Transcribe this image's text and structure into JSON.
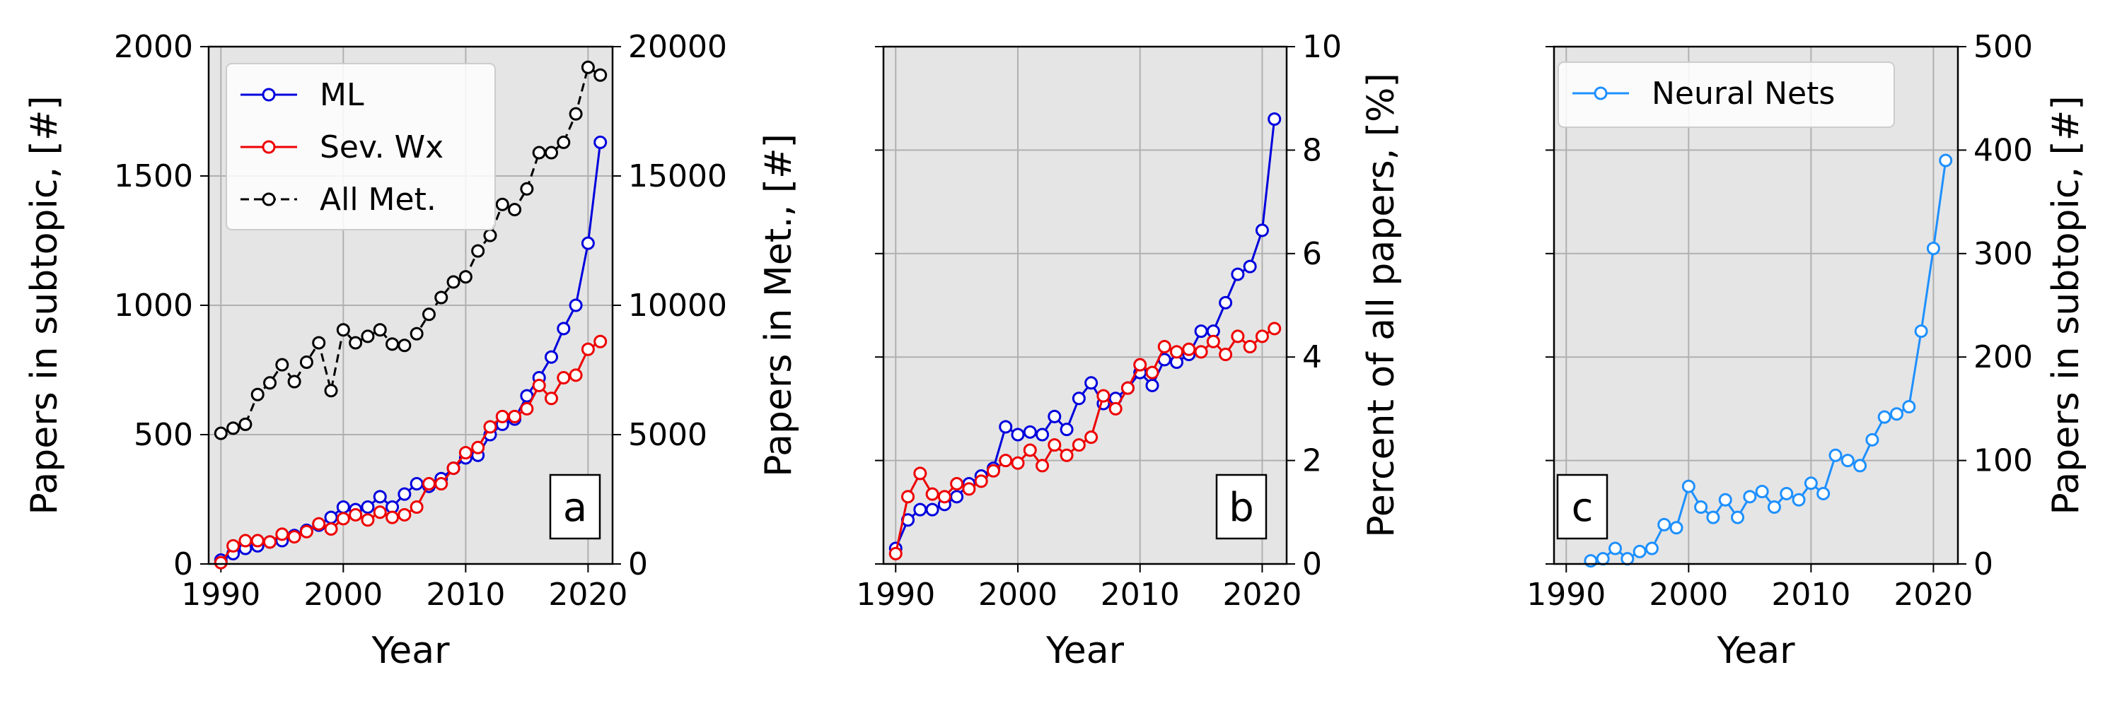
{
  "chart_data": [
    {
      "type": "line",
      "panel_label": "a",
      "xlabel": "Year",
      "ylabel": "Papers in subtopic, [#]",
      "ylabel_right": "Papers in Met., [#]",
      "xlim": [
        1989,
        2022
      ],
      "ylim": [
        0,
        2000
      ],
      "ylim_right": [
        0,
        20000
      ],
      "xticks": [
        "1990",
        "2000",
        "2010",
        "2020"
      ],
      "yticks": [
        "0",
        "500",
        "1000",
        "1500",
        "2000"
      ],
      "yticks_right": [
        "0",
        "5000",
        "10000",
        "15000",
        "20000"
      ],
      "grid": true,
      "legend_position": "top-left",
      "series": [
        {
          "name": "ML",
          "axis": "left",
          "color": "#0000dd",
          "linestyle": "solid",
          "x": [
            1990,
            1991,
            1992,
            1993,
            1994,
            1995,
            1996,
            1997,
            1998,
            1999,
            2000,
            2001,
            2002,
            2003,
            2004,
            2005,
            2006,
            2007,
            2008,
            2009,
            2010,
            2011,
            2012,
            2013,
            2014,
            2015,
            2016,
            2017,
            2018,
            2019,
            2020,
            2021
          ],
          "y": [
            15,
            40,
            60,
            70,
            85,
            90,
            110,
            130,
            150,
            180,
            220,
            210,
            220,
            260,
            220,
            270,
            310,
            300,
            330,
            370,
            410,
            420,
            500,
            540,
            560,
            650,
            720,
            800,
            910,
            1000,
            1240,
            1630
          ]
        },
        {
          "name": "Sev. Wx",
          "axis": "left",
          "color": "#ee0000",
          "linestyle": "solid",
          "x": [
            1990,
            1991,
            1992,
            1993,
            1994,
            1995,
            1996,
            1997,
            1998,
            1999,
            2000,
            2001,
            2002,
            2003,
            2004,
            2005,
            2006,
            2007,
            2008,
            2009,
            2010,
            2011,
            2012,
            2013,
            2014,
            2015,
            2016,
            2017,
            2018,
            2019,
            2020,
            2021
          ],
          "y": [
            5,
            70,
            90,
            90,
            85,
            115,
            105,
            125,
            155,
            135,
            175,
            190,
            170,
            200,
            180,
            190,
            220,
            310,
            310,
            370,
            430,
            450,
            530,
            570,
            570,
            600,
            690,
            640,
            720,
            730,
            830,
            860
          ]
        },
        {
          "name": "All Met.",
          "axis": "right",
          "color": "#000000",
          "linestyle": "dashed",
          "x": [
            1990,
            1991,
            1992,
            1993,
            1994,
            1995,
            1996,
            1997,
            1998,
            1999,
            2000,
            2001,
            2002,
            2003,
            2004,
            2005,
            2006,
            2007,
            2008,
            2009,
            2010,
            2011,
            2012,
            2013,
            2014,
            2015,
            2016,
            2017,
            2018,
            2019,
            2020,
            2021
          ],
          "y": [
            5050,
            5250,
            5400,
            6550,
            7000,
            7700,
            7050,
            7800,
            8550,
            6700,
            9050,
            8550,
            8800,
            9050,
            8500,
            8450,
            8900,
            9650,
            10300,
            10900,
            11100,
            12100,
            12700,
            13900,
            13700,
            14500,
            15900,
            15900,
            16300,
            17400,
            19200,
            18900
          ]
        }
      ]
    },
    {
      "type": "line",
      "panel_label": "b",
      "xlabel": "Year",
      "ylabel": "",
      "ylabel_right": "Percent of all papers, [%]",
      "xlim": [
        1989,
        2022
      ],
      "ylim_right": [
        0,
        10
      ],
      "xticks": [
        "1990",
        "2000",
        "2010",
        "2020"
      ],
      "yticks_right": [
        "0",
        "2",
        "4",
        "6",
        "8",
        "10"
      ],
      "grid": true,
      "series": [
        {
          "name": "ML",
          "axis": "right",
          "color": "#0000dd",
          "linestyle": "solid",
          "x": [
            1990,
            1991,
            1992,
            1993,
            1994,
            1995,
            1996,
            1997,
            1998,
            1999,
            2000,
            2001,
            2002,
            2003,
            2004,
            2005,
            2006,
            2007,
            2008,
            2009,
            2010,
            2011,
            2012,
            2013,
            2014,
            2015,
            2016,
            2017,
            2018,
            2019,
            2020,
            2021
          ],
          "y": [
            0.3,
            0.85,
            1.05,
            1.05,
            1.15,
            1.3,
            1.55,
            1.7,
            1.85,
            2.65,
            2.5,
            2.55,
            2.5,
            2.85,
            2.6,
            3.2,
            3.5,
            3.1,
            3.2,
            3.4,
            3.7,
            3.45,
            3.95,
            3.9,
            4.05,
            4.5,
            4.5,
            5.05,
            5.6,
            5.75,
            6.45,
            8.6
          ]
        },
        {
          "name": "Sev. Wx",
          "axis": "right",
          "color": "#ee0000",
          "linestyle": "solid",
          "x": [
            1990,
            1991,
            1992,
            1993,
            1994,
            1995,
            1996,
            1997,
            1998,
            1999,
            2000,
            2001,
            2002,
            2003,
            2004,
            2005,
            2006,
            2007,
            2008,
            2009,
            2010,
            2011,
            2012,
            2013,
            2014,
            2015,
            2016,
            2017,
            2018,
            2019,
            2020,
            2021
          ],
          "y": [
            0.2,
            1.3,
            1.75,
            1.35,
            1.3,
            1.55,
            1.45,
            1.6,
            1.8,
            2.0,
            1.95,
            2.2,
            1.9,
            2.3,
            2.1,
            2.3,
            2.45,
            3.25,
            3.0,
            3.4,
            3.85,
            3.7,
            4.2,
            4.1,
            4.15,
            4.1,
            4.3,
            4.05,
            4.4,
            4.2,
            4.4,
            4.55
          ]
        }
      ]
    },
    {
      "type": "line",
      "panel_label": "c",
      "xlabel": "Year",
      "ylabel": "",
      "ylabel_right": "Papers in subtopic, [#]",
      "xlim": [
        1989,
        2022
      ],
      "ylim_right": [
        0,
        500
      ],
      "xticks": [
        "1990",
        "2000",
        "2010",
        "2020"
      ],
      "yticks_right": [
        "0",
        "100",
        "200",
        "300",
        "400",
        "500"
      ],
      "grid": true,
      "legend_position": "top-left",
      "series": [
        {
          "name": "Neural Nets",
          "axis": "right",
          "color": "#1e90ff",
          "linestyle": "solid",
          "x": [
            1992,
            1993,
            1994,
            1995,
            1996,
            1997,
            1998,
            1999,
            2000,
            2001,
            2002,
            2003,
            2004,
            2005,
            2006,
            2007,
            2008,
            2009,
            2010,
            2011,
            2012,
            2013,
            2014,
            2015,
            2016,
            2017,
            2018,
            2019,
            2020,
            2021
          ],
          "y": [
            3,
            5,
            15,
            5,
            12,
            15,
            38,
            35,
            75,
            55,
            45,
            62,
            45,
            65,
            70,
            55,
            68,
            62,
            78,
            68,
            105,
            100,
            95,
            120,
            142,
            145,
            152,
            225,
            305,
            390
          ]
        }
      ]
    }
  ]
}
